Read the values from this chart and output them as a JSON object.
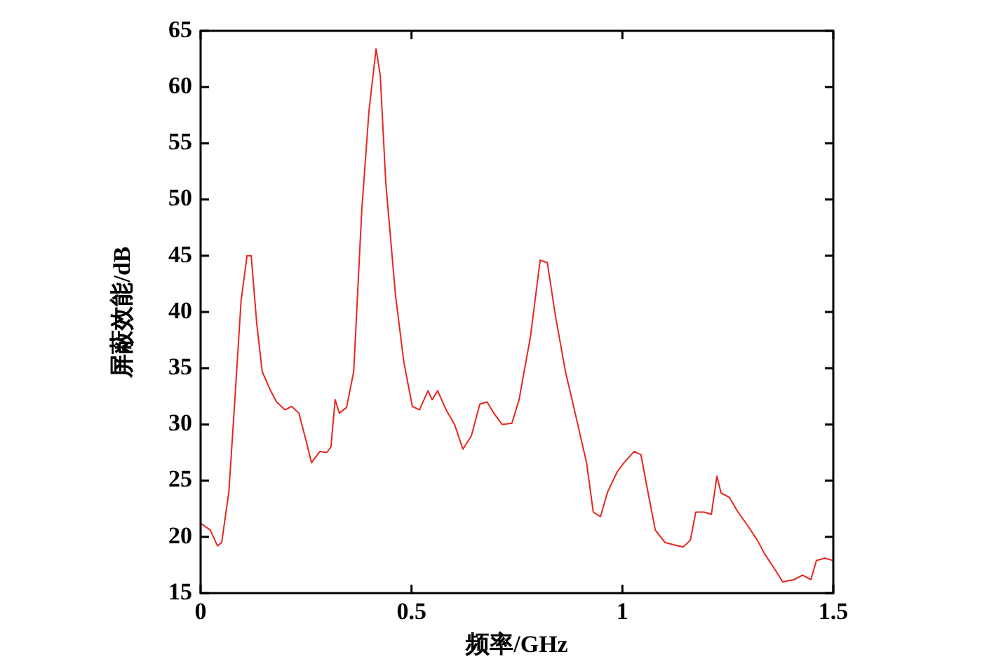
{
  "chart_data": {
    "type": "line",
    "xlabel": "频率/GHz",
    "ylabel": "屏蔽效能/dB",
    "xlim": [
      0,
      1.5
    ],
    "ylim": [
      15,
      65
    ],
    "xticks": [
      0,
      0.5,
      1,
      1.5
    ],
    "yticks": [
      15,
      20,
      25,
      30,
      35,
      40,
      45,
      50,
      55,
      60,
      65
    ],
    "grid": false,
    "legend": false,
    "marker": "none",
    "line_style": "solid",
    "series": [
      {
        "color": "#e8261f",
        "x": [
          0,
          0.023,
          0.04,
          0.05,
          0.067,
          0.08,
          0.096,
          0.11,
          0.12,
          0.133,
          0.146,
          0.166,
          0.18,
          0.2,
          0.216,
          0.233,
          0.249,
          0.263,
          0.283,
          0.299,
          0.309,
          0.319,
          0.329,
          0.346,
          0.363,
          0.382,
          0.399,
          0.416,
          0.426,
          0.439,
          0.462,
          0.482,
          0.502,
          0.519,
          0.539,
          0.549,
          0.562,
          0.582,
          0.602,
          0.622,
          0.642,
          0.662,
          0.679,
          0.695,
          0.715,
          0.738,
          0.755,
          0.782,
          0.805,
          0.822,
          0.841,
          0.865,
          0.888,
          0.915,
          0.931,
          0.948,
          0.965,
          0.988,
          1.004,
          1.028,
          1.044,
          1.061,
          1.078,
          1.101,
          1.121,
          1.144,
          1.161,
          1.174,
          1.194,
          1.211,
          1.224,
          1.234,
          1.254,
          1.274,
          1.297,
          1.32,
          1.337,
          1.36,
          1.38,
          1.407,
          1.427,
          1.447,
          1.46,
          1.48,
          1.5
        ],
        "values": [
          21.2,
          20.6,
          19.2,
          19.5,
          24,
          31.5,
          41,
          45,
          45,
          39,
          34.7,
          33,
          32,
          31.3,
          31.6,
          31,
          28.7,
          26.6,
          27.6,
          27.5,
          28,
          32.2,
          31,
          31.5,
          34.7,
          49,
          57.8,
          63.4,
          61,
          51.5,
          41.5,
          35.5,
          31.6,
          31.3,
          33,
          32.2,
          33,
          31.3,
          30,
          27.8,
          29,
          31.8,
          32,
          31,
          30,
          30.1,
          32.2,
          37.8,
          44.6,
          44.4,
          39.7,
          34.7,
          31,
          26.6,
          22.2,
          21.8,
          24,
          25.8,
          26.6,
          27.6,
          27.3,
          23.9,
          20.6,
          19.5,
          19.3,
          19.1,
          19.7,
          22.2,
          22.2,
          22,
          25.4,
          23.9,
          23.5,
          22.2,
          21,
          19.7,
          18.5,
          17.2,
          16,
          16.2,
          16.6,
          16.2,
          17.9,
          18.1,
          17.9
        ]
      }
    ]
  }
}
